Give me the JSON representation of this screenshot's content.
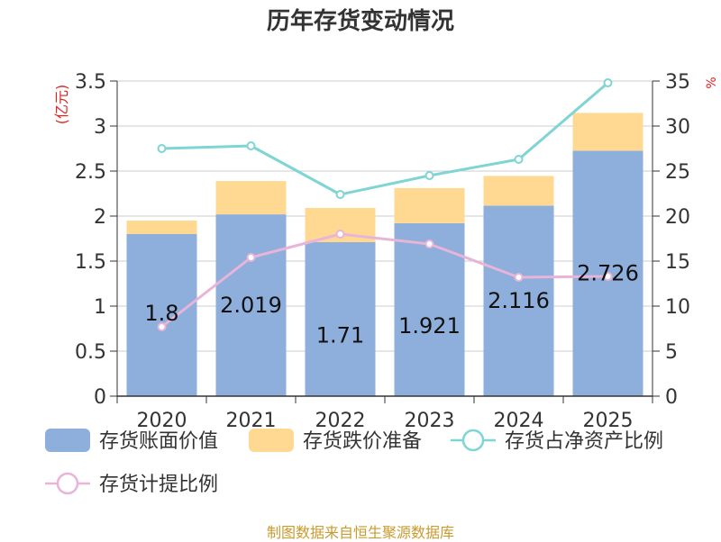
{
  "chart_data": {
    "type": "bar",
    "title": "历年存货变动情况",
    "categories": [
      "2020",
      "2021",
      "2022",
      "2023",
      "2024",
      "2025"
    ],
    "y_left_unit": "(亿元)",
    "y_left_lim": [
      0,
      3.5
    ],
    "y_left_ticks": [
      "0",
      "0.5",
      "1",
      "1.5",
      "2",
      "2.5",
      "3",
      "3.5"
    ],
    "y_right_unit": "%",
    "y_right_lim": [
      0,
      35
    ],
    "y_right_ticks": [
      "0",
      "5",
      "10",
      "15",
      "20",
      "25",
      "30",
      "35"
    ],
    "grid": true,
    "legend_position": "bottom",
    "series": [
      {
        "name": "存货账面价值",
        "kind": "bar",
        "axis": "left",
        "stack": "inv",
        "color": "#8eaedb",
        "values": [
          1.8,
          2.019,
          1.71,
          1.921,
          2.116,
          2.726
        ],
        "labels": [
          "1.8",
          "2.019",
          "1.71",
          "1.921",
          "2.116",
          "2.726"
        ]
      },
      {
        "name": "存货跌价准备",
        "kind": "bar",
        "axis": "left",
        "stack": "inv",
        "color": "#ffd992",
        "values": [
          0.15,
          0.37,
          0.38,
          0.39,
          0.33,
          0.42
        ]
      },
      {
        "name": "存货占净资产比例",
        "kind": "line",
        "axis": "right",
        "color": "#7fd4d4",
        "values": [
          27.5,
          27.8,
          22.4,
          24.5,
          26.3,
          34.8
        ]
      },
      {
        "name": "存货计提比例",
        "kind": "line",
        "axis": "right",
        "color": "#e8b4d8",
        "values": [
          7.7,
          15.4,
          18.0,
          16.9,
          13.2,
          13.3
        ]
      }
    ]
  },
  "source_note": "制图数据来自恒生聚源数据库"
}
